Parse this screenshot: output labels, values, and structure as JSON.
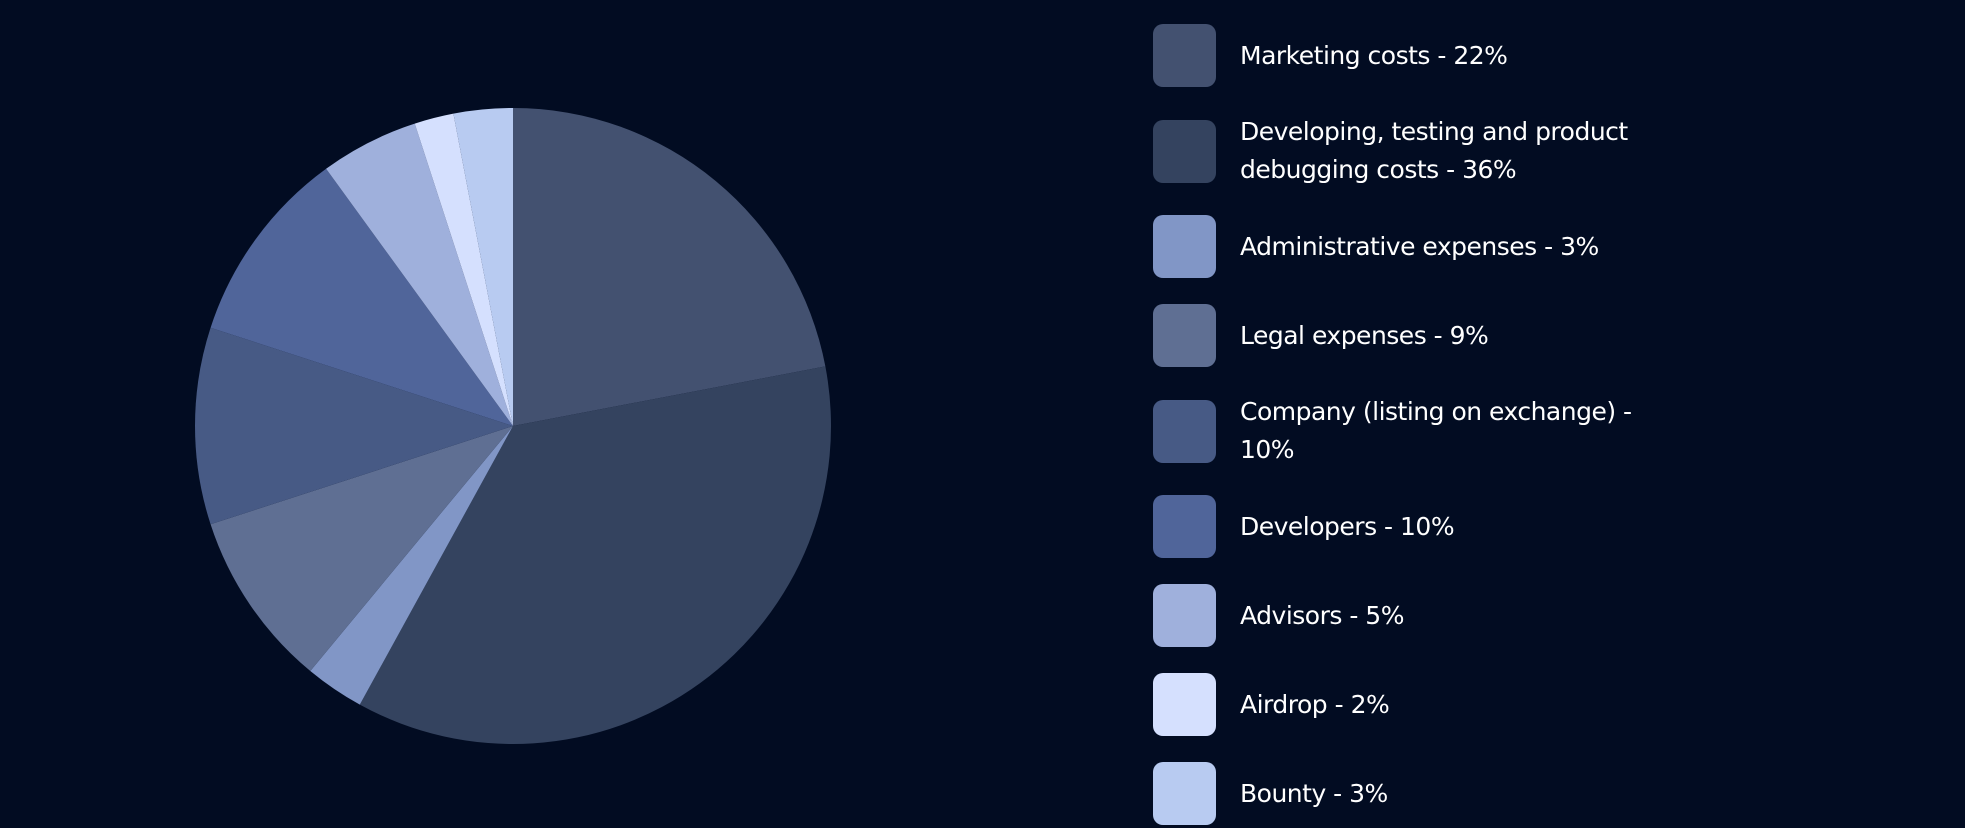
{
  "chart_data": {
    "type": "pie",
    "categories": [
      "Marketing costs - 22%",
      "Developing, testing and product debugging costs - 36%",
      "Administrative expenses - 3%",
      "Legal expenses - 9%",
      "Company (listing on exchange) - 10%",
      "Developers - 10%",
      "Advisors - 5%",
      "Airdrop - 2%",
      "Bounty - 3%"
    ],
    "values": [
      22,
      36,
      3,
      9,
      10,
      10,
      5,
      2,
      3
    ],
    "colors": [
      "#435170",
      "#34435f",
      "#8196c6",
      "#5f6f93",
      "#475a85",
      "#50659a",
      "#9fb0dc",
      "#d5e0fe",
      "#b8cbf1"
    ],
    "legend": "right"
  }
}
